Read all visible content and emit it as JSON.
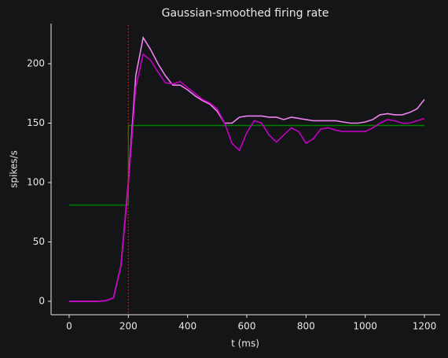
{
  "chart_data": {
    "type": "line",
    "title": "Gaussian-smoothed firing rate",
    "x_label": "t (ms)",
    "y_label": "spikes/s",
    "x": [
      0,
      25,
      50,
      75,
      100,
      125,
      150,
      175,
      200,
      225,
      250,
      275,
      300,
      325,
      350,
      375,
      400,
      425,
      450,
      475,
      500,
      525,
      550,
      575,
      600,
      625,
      650,
      675,
      700,
      725,
      750,
      775,
      800,
      825,
      850,
      875,
      900,
      925,
      950,
      975,
      1000,
      1025,
      1050,
      1075,
      1100,
      1125,
      1150,
      1175,
      1200
    ],
    "series": [
      {
        "color": "#ee82ee",
        "values": [
          0,
          0,
          0,
          0,
          0,
          0.5,
          3,
          30,
          100,
          190,
          222,
          212,
          200,
          190,
          182,
          182,
          178,
          173,
          169,
          166,
          160,
          150,
          150,
          155,
          156,
          156,
          156,
          155,
          155,
          153,
          155,
          154,
          153,
          152,
          152,
          152,
          152,
          151,
          150,
          150,
          151,
          153,
          157,
          158,
          157,
          157,
          159,
          162,
          170
        ]
      },
      {
        "color": "#c400c4",
        "values": [
          0,
          0,
          0,
          0,
          0,
          0.5,
          3,
          30,
          98,
          180,
          208,
          203,
          193,
          184,
          183,
          185,
          180,
          175,
          170,
          167,
          162,
          150,
          133,
          127,
          142,
          152,
          150,
          140,
          134,
          140,
          146,
          143,
          133,
          137,
          145,
          146,
          144,
          143,
          143,
          143,
          143,
          146,
          150,
          153,
          152,
          150,
          150,
          152,
          154
        ]
      }
    ],
    "step": {
      "color": "#008000",
      "x": [
        0,
        200,
        200,
        1200
      ],
      "values": [
        81,
        81,
        148,
        148
      ]
    },
    "vline": {
      "value": 200,
      "color": "#ff0000"
    },
    "xlim": [
      -61,
      1253
    ],
    "ylim": [
      -11.3,
      233.8
    ],
    "xticks": [
      0,
      200,
      400,
      600,
      800,
      1000,
      1200
    ],
    "yticks": [
      0,
      50,
      100,
      150,
      200
    ]
  }
}
